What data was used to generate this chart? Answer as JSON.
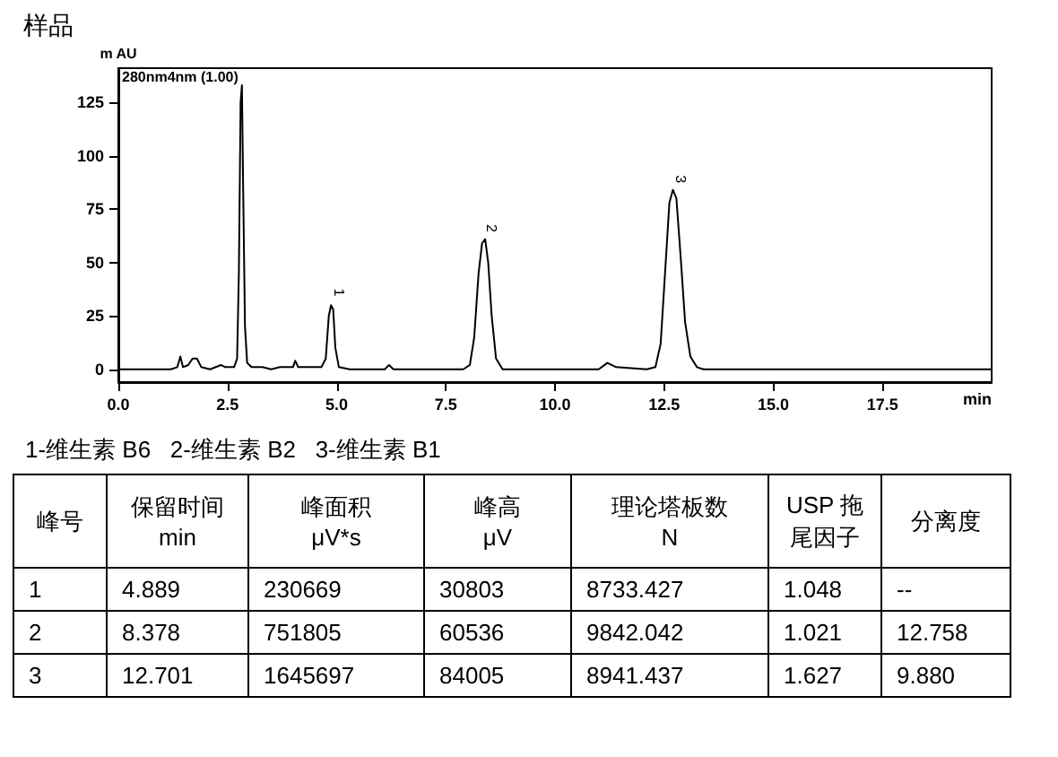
{
  "chart_data": [
    {
      "type": "line",
      "title": "样品",
      "xlabel": "min",
      "ylabel": "m AU",
      "xlim": [
        0,
        20
      ],
      "xticks": [
        {
          "value": 0,
          "label": "0.0"
        },
        {
          "value": 2.5,
          "label": "2.5"
        },
        {
          "value": 5,
          "label": "5.0"
        },
        {
          "value": 7.5,
          "label": "7.5"
        },
        {
          "value": 10,
          "label": "10.0"
        },
        {
          "value": 12.5,
          "label": "12.5"
        },
        {
          "value": 15,
          "label": "15.0"
        },
        {
          "value": 17.5,
          "label": "17.5"
        }
      ],
      "ylim": [
        -6,
        141
      ],
      "yticks": [
        0,
        25,
        50,
        75,
        100,
        125
      ],
      "grid": false,
      "annotations": [
        "280nm4nm (1.00)",
        {
          "text": "1",
          "x": 4.889,
          "y": 31
        },
        {
          "text": "2",
          "x": 8.378,
          "y": 61
        },
        {
          "text": "3",
          "x": 12.701,
          "y": 84
        }
      ],
      "series": [
        {
          "color": "#000000",
          "x": [
            0,
            1.0,
            1.2,
            1.35,
            1.42,
            1.48,
            1.6,
            1.7,
            1.8,
            1.9,
            2.1,
            2.35,
            2.45,
            2.65,
            2.72,
            2.76,
            2.8,
            2.83,
            2.86,
            2.9,
            2.95,
            3.05,
            3.3,
            3.5,
            3.7,
            4.0,
            4.05,
            4.12,
            4.4,
            4.65,
            4.75,
            4.82,
            4.87,
            4.92,
            4.97,
            5.05,
            5.3,
            6.1,
            6.2,
            6.3,
            7.9,
            8.05,
            8.15,
            8.25,
            8.33,
            8.4,
            8.47,
            8.55,
            8.65,
            8.8,
            9.6,
            11.0,
            11.2,
            11.4,
            12.1,
            12.3,
            12.42,
            12.52,
            12.62,
            12.7,
            12.78,
            12.88,
            12.98,
            13.1,
            13.25,
            13.4,
            20
          ],
          "values": [
            0,
            0,
            0,
            1,
            6,
            1,
            2,
            5,
            5,
            1,
            0,
            2,
            1,
            1,
            5,
            45,
            125,
            133,
            82,
            20,
            3,
            1,
            1,
            0,
            1,
            1,
            4,
            1,
            1,
            1,
            5,
            25,
            30,
            28,
            10,
            1,
            0,
            0,
            2,
            0,
            0,
            2,
            15,
            45,
            59,
            61,
            50,
            25,
            5,
            0,
            0,
            0,
            3,
            1,
            0,
            1,
            12,
            45,
            78,
            84,
            80,
            52,
            22,
            6,
            1,
            0,
            0
          ]
        }
      ]
    },
    {
      "type": "other",
      "annotations": [
        "1-维生素 B6   2-维生素 B2   3-维生素 B1",
        "峰号",
        "保留时间\nmin",
        "峰面积\nμV*s",
        "峰高\nμV",
        "理论塔板数\nN",
        "USP 拖尾因子",
        "分离度",
        "1",
        "4.889",
        "230669",
        "30803",
        "8733.427",
        "1.048",
        "--",
        "2",
        "8.378",
        "751805",
        "60536",
        "9842.042",
        "1.021",
        "12.758",
        "3",
        "12.701",
        "1645697",
        "84005",
        "8941.437",
        "1.627",
        "9.880"
      ]
    }
  ]
}
